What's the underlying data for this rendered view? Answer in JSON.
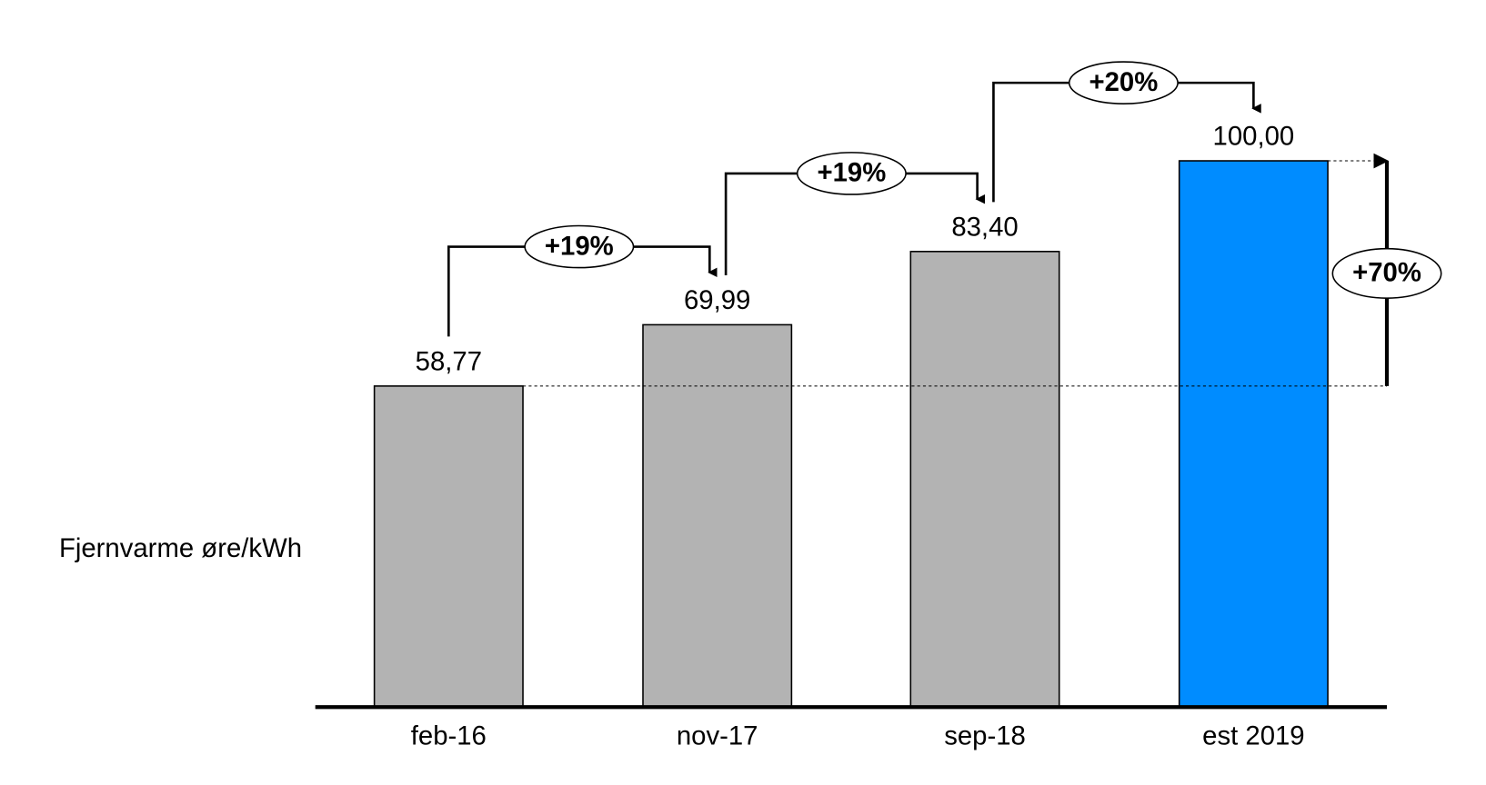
{
  "chart_data": {
    "type": "bar",
    "y_label": "Fjernvarme øre/kWh",
    "categories": [
      "feb-16",
      "nov-17",
      "sep-18",
      "est 2019"
    ],
    "values": [
      58.77,
      69.99,
      83.4,
      100.0
    ],
    "value_labels": [
      "58,77",
      "69,99",
      "83,40",
      "100,00"
    ],
    "colors": [
      "#b3b3b3",
      "#b3b3b3",
      "#b3b3b3",
      "#008cff"
    ],
    "ylim": [
      0,
      100
    ],
    "annotations": [
      "+19%",
      "+19%",
      "+20%",
      "+70%"
    ]
  }
}
